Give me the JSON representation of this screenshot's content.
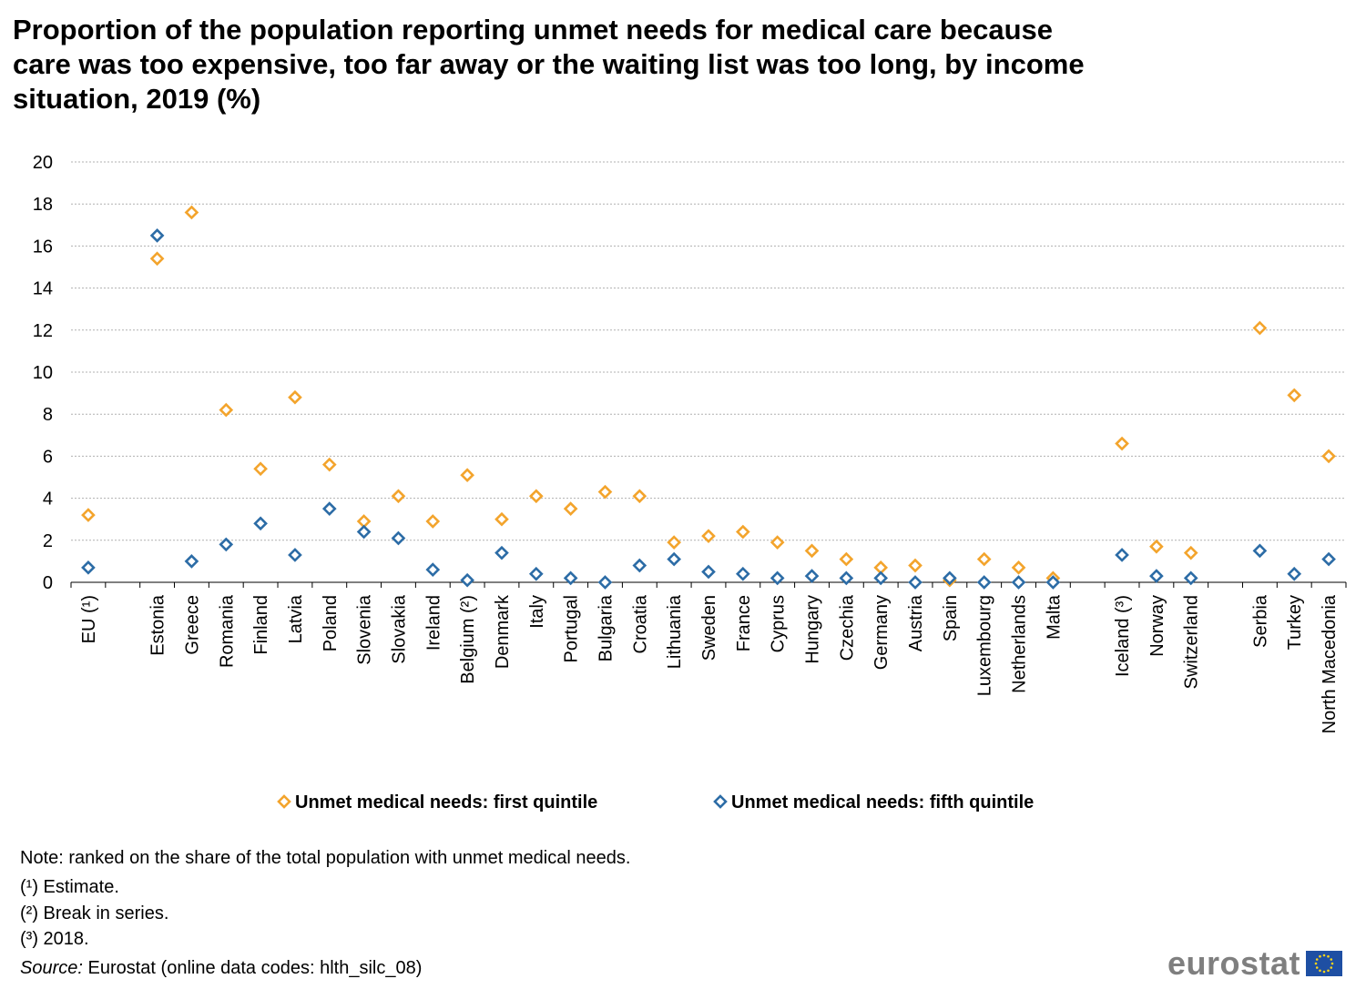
{
  "chart_data": {
    "type": "scatter",
    "title": "Proportion of the population reporting unmet needs for medical care because care was too expensive, too far away or the waiting list was too long, by income situation, 2019 (%)",
    "ylim": [
      0,
      20
    ],
    "yticks": [
      0,
      2,
      4,
      6,
      8,
      10,
      12,
      14,
      16,
      18,
      20
    ],
    "grid": true,
    "legend_position": "bottom",
    "categories": [
      "EU (¹)",
      "",
      "Estonia",
      "Greece",
      "Romania",
      "Finland",
      "Latvia",
      "Poland",
      "Slovenia",
      "Slovakia",
      "Ireland",
      "Belgium (²)",
      "Denmark",
      "Italy",
      "Portugal",
      "Bulgaria",
      "Croatia",
      "Lithuania",
      "Sweden",
      "France",
      "Cyprus",
      "Hungary",
      "Czechia",
      "Germany",
      "Austria",
      "Spain",
      "Luxembourg",
      "Netherlands",
      "Malta",
      "",
      "Iceland (³)",
      "Norway",
      "Switzerland",
      "",
      "Serbia",
      "Turkey",
      "North Macedonia"
    ],
    "series": [
      {
        "name": "Unmet medical needs: first quintile",
        "color": "#f3a42c",
        "values": [
          3.2,
          null,
          15.4,
          17.6,
          8.2,
          5.4,
          8.8,
          5.6,
          2.9,
          4.1,
          2.9,
          5.1,
          3.0,
          4.1,
          3.5,
          4.3,
          4.1,
          1.9,
          2.2,
          2.4,
          1.9,
          1.5,
          1.1,
          0.7,
          0.8,
          0.1,
          1.1,
          0.7,
          0.2,
          null,
          6.6,
          1.7,
          1.4,
          null,
          12.1,
          8.9,
          6.0
        ]
      },
      {
        "name": "Unmet medical needs: fifth quintile",
        "color": "#2c6ca6",
        "values": [
          0.7,
          null,
          16.5,
          1.0,
          1.8,
          2.8,
          1.3,
          3.5,
          2.4,
          2.1,
          0.6,
          0.1,
          1.4,
          0.4,
          0.2,
          0.0,
          0.8,
          1.1,
          0.5,
          0.4,
          0.2,
          0.3,
          0.2,
          0.2,
          0.0,
          0.2,
          0.0,
          0.0,
          0.0,
          null,
          1.3,
          0.3,
          0.2,
          null,
          1.5,
          0.4,
          1.1
        ]
      }
    ]
  },
  "notes": {
    "note": "Note: ranked on the share of the total population with unmet medical needs.",
    "fn1": "(¹) Estimate.",
    "fn2": "(²) Break in series.",
    "fn3": "(³) 2018.",
    "source_label": "Source:",
    "source_text": " Eurostat (online data codes: hlth_silc_08)"
  },
  "logo": {
    "text": "eurostat"
  }
}
